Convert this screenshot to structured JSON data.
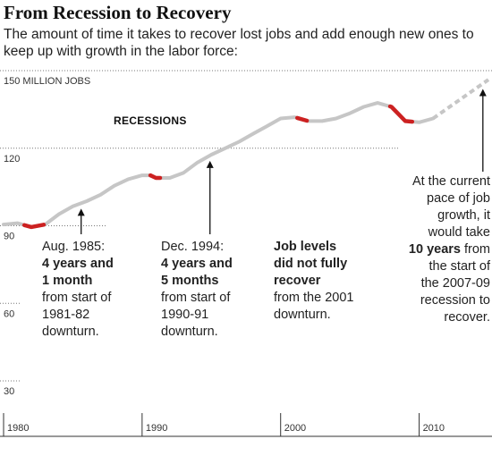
{
  "chart_data": {
    "type": "line",
    "title": "From Recession to Recovery",
    "subtitle": "The amount of time it takes to recover lost jobs and add enough new ones to keep up with growth in the labor force:",
    "ylabel": "150 MILLION JOBS",
    "ylim": [
      30,
      150
    ],
    "xlim": [
      1980,
      2015
    ],
    "y_ticks": [
      "150 MILLION JOBS",
      "120",
      "90",
      "60",
      "30"
    ],
    "x_ticks": [
      "1980",
      "1990",
      "2000",
      "2010"
    ],
    "grid": "horizontal dotted",
    "series": [
      {
        "x": [
          1980.0,
          1981.0,
          1982.0,
          1983.0,
          1984.0,
          1985.0,
          1986.0,
          1987.0,
          1988.0,
          1989.0,
          1990.0,
          1990.6,
          1991.0,
          1992.0,
          1993.0,
          1994.0,
          1995.0,
          1996.0,
          1997.0,
          1998.0,
          1999.0,
          2000.0,
          2001.0,
          2002.0,
          2003.0,
          2004.0,
          2005.0,
          2006.0,
          2007.0,
          2008.0,
          2009.0,
          2010.0,
          2011.0
        ],
        "values": [
          90.5,
          91.0,
          89.5,
          90.5,
          94.5,
          97.5,
          99.5,
          102.0,
          105.5,
          108.0,
          109.5,
          109.5,
          108.5,
          108.5,
          110.5,
          114.5,
          117.5,
          120.0,
          122.5,
          125.5,
          128.5,
          131.5,
          132.0,
          130.5,
          130.5,
          131.5,
          133.5,
          136.0,
          137.5,
          136.0,
          130.5,
          130.0,
          131.5
        ]
      }
    ],
    "projection": {
      "x": [
        2011.0,
        2015.0
      ],
      "values": [
        131.5,
        146.5
      ],
      "style": "dashed"
    },
    "recessions": [
      {
        "start": 1981.5,
        "end": 1982.9
      },
      {
        "start": 1990.6,
        "end": 1991.3
      },
      {
        "start": 2001.2,
        "end": 2001.9
      },
      {
        "start": 2007.9,
        "end": 2009.5
      }
    ],
    "recession_label": "RECESSIONS",
    "annotations": [
      {
        "id": "aug-1985",
        "arrow_x": 1985.6,
        "lines": [
          {
            "text": "Aug. 1985:",
            "bold": false
          },
          {
            "text": "4 years and",
            "bold": true
          },
          {
            "text": "1 month",
            "bold": true
          },
          {
            "text": "from start of",
            "bold": false
          },
          {
            "text": "1981-82",
            "bold": false
          },
          {
            "text": "downturn.",
            "bold": false
          }
        ]
      },
      {
        "id": "dec-1994",
        "arrow_x": 1994.9,
        "lines": [
          {
            "text": "Dec. 1994:",
            "bold": false
          },
          {
            "text": "4 years and",
            "bold": true
          },
          {
            "text": "5 months",
            "bold": true
          },
          {
            "text": "from start of",
            "bold": false
          },
          {
            "text": "1990-91",
            "bold": false
          },
          {
            "text": "downturn.",
            "bold": false
          }
        ]
      },
      {
        "id": "2001",
        "lines": [
          {
            "text": "Job levels",
            "bold": true
          },
          {
            "text": "did not fully",
            "bold": true
          },
          {
            "text": "recover",
            "bold": true
          },
          {
            "text": "from the 2001",
            "bold": false
          },
          {
            "text": "downturn.",
            "bold": false
          }
        ]
      },
      {
        "id": "current-pace",
        "arrow_x": 2014.6,
        "lines": [
          {
            "text": "At the current",
            "bold": false
          },
          {
            "text": "pace of job",
            "bold": false
          },
          {
            "text": "growth, it",
            "bold": false
          },
          {
            "text": "would take",
            "bold": false
          },
          {
            "parts": [
              {
                "text": "10 years",
                "bold": true
              },
              {
                "text": " from",
                "bold": false
              }
            ]
          },
          {
            "text": "the start of",
            "bold": false
          },
          {
            "text": "the 2007-09",
            "bold": false
          },
          {
            "text": "recession to",
            "bold": false
          },
          {
            "text": "recover.",
            "bold": false
          }
        ]
      }
    ],
    "colors": {
      "line": "#c6c6c6",
      "recession": "#cc2121",
      "axis": "#333333",
      "grid": "#777777"
    }
  }
}
